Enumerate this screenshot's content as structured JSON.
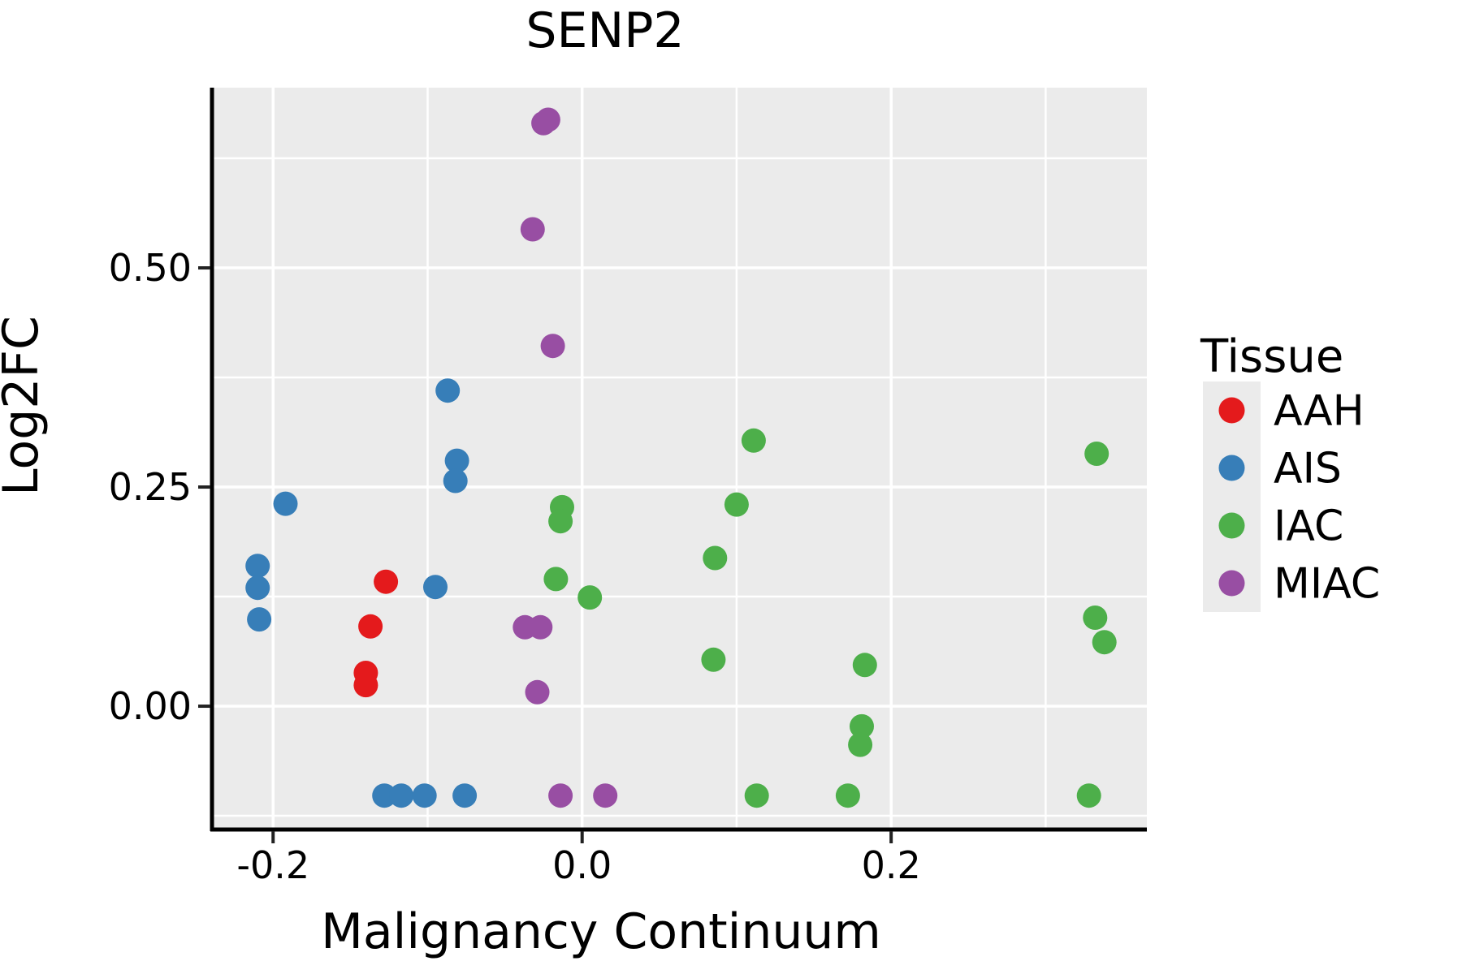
{
  "chart_data": {
    "type": "scatter",
    "title": "SENP2",
    "xlabel": "Malignancy Continuum",
    "ylabel": "Log2FC",
    "xlim": [
      -0.2385,
      0.3655
    ],
    "ylim": [
      -0.1407,
      0.7056
    ],
    "x_ticks": [
      -0.2,
      0.0,
      0.2
    ],
    "x_tick_labels": [
      "-0.2",
      "0.0",
      "0.2"
    ],
    "y_ticks": [
      0.0,
      0.25,
      0.5
    ],
    "y_tick_labels": [
      "0.00",
      "0.25",
      "0.50"
    ],
    "x_minor_gridlines": [
      -0.1,
      0.1,
      0.3
    ],
    "y_minor_gridlines": [
      -0.125,
      0.125,
      0.375,
      0.625
    ],
    "panel_background": "#EBEBEB",
    "gridline_color": "#FFFFFF",
    "axis_line_color": "#000000",
    "legend": {
      "title": "Tissue",
      "position": "right",
      "key_background": "#EBEBEB"
    },
    "series": [
      {
        "name": "AAH",
        "color": "#E41A1C",
        "points": [
          [
            -0.127,
            0.142
          ],
          [
            -0.137,
            0.091
          ],
          [
            -0.14,
            0.038
          ],
          [
            -0.14,
            0.024
          ]
        ]
      },
      {
        "name": "AIS",
        "color": "#377EB8",
        "points": [
          [
            -0.192,
            0.231
          ],
          [
            -0.21,
            0.16
          ],
          [
            -0.21,
            0.135
          ],
          [
            -0.209,
            0.099
          ],
          [
            -0.095,
            0.136
          ],
          [
            -0.087,
            0.36
          ],
          [
            -0.081,
            0.28
          ],
          [
            -0.082,
            0.257
          ],
          [
            -0.128,
            -0.102
          ],
          [
            -0.117,
            -0.102
          ],
          [
            -0.102,
            -0.102
          ],
          [
            -0.076,
            -0.102
          ]
        ]
      },
      {
        "name": "IAC",
        "color": "#4DAF4A",
        "points": [
          [
            -0.017,
            0.145
          ],
          [
            0.005,
            0.124
          ],
          [
            -0.013,
            0.227
          ],
          [
            -0.014,
            0.211
          ],
          [
            0.111,
            0.303
          ],
          [
            0.1,
            0.23
          ],
          [
            0.086,
            0.169
          ],
          [
            0.085,
            0.053
          ],
          [
            0.183,
            0.047
          ],
          [
            0.181,
            -0.023
          ],
          [
            0.18,
            -0.044
          ],
          [
            0.113,
            -0.102
          ],
          [
            0.172,
            -0.102
          ],
          [
            0.333,
            0.288
          ],
          [
            0.332,
            0.101
          ],
          [
            0.338,
            0.073
          ],
          [
            0.328,
            -0.102
          ]
        ]
      },
      {
        "name": "MIAC",
        "color": "#984EA3",
        "points": [
          [
            -0.025,
            0.665
          ],
          [
            -0.022,
            0.669
          ],
          [
            -0.032,
            0.544
          ],
          [
            -0.019,
            0.411
          ],
          [
            -0.037,
            0.09
          ],
          [
            -0.027,
            0.09
          ],
          [
            -0.029,
            0.016
          ],
          [
            -0.014,
            -0.102
          ],
          [
            0.015,
            -0.102
          ]
        ]
      }
    ]
  }
}
